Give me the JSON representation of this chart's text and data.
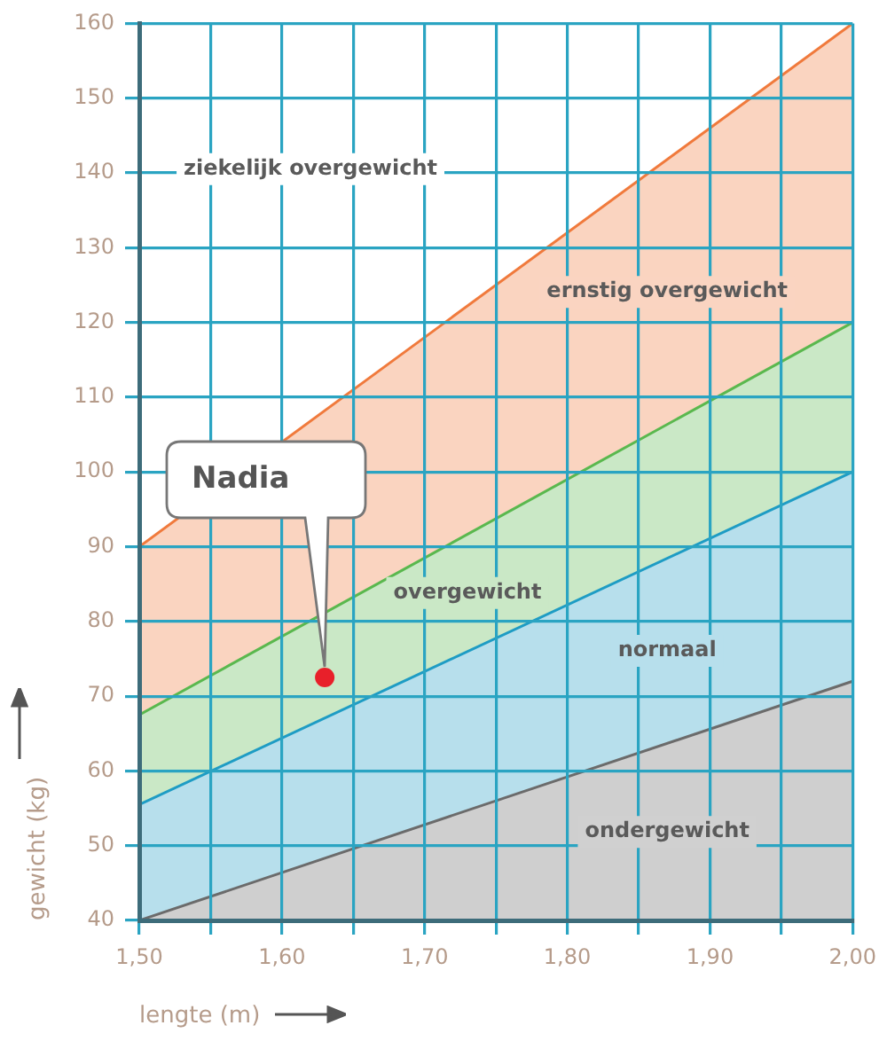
{
  "chart_data": {
    "type": "area",
    "xlabel": "lengte (m)",
    "ylabel": "gewicht (kg)",
    "x": [
      1.5,
      2.0
    ],
    "xlim": [
      1.5,
      2.0
    ],
    "xticks": [
      {
        "value": 1.5,
        "label": "1,50"
      },
      {
        "value": 1.55,
        "label": null
      },
      {
        "value": 1.6,
        "label": "1,60"
      },
      {
        "value": 1.65,
        "label": null
      },
      {
        "value": 1.7,
        "label": "1,70"
      },
      {
        "value": 1.75,
        "label": null
      },
      {
        "value": 1.8,
        "label": "1,80"
      },
      {
        "value": 1.85,
        "label": null
      },
      {
        "value": 1.9,
        "label": "1,90"
      },
      {
        "value": 1.95,
        "label": null
      },
      {
        "value": 2.0,
        "label": "2,00"
      }
    ],
    "ylim": [
      40,
      160
    ],
    "yticks": [
      40,
      50,
      60,
      70,
      80,
      90,
      100,
      110,
      120,
      130,
      140,
      150,
      160
    ],
    "grid": true,
    "legend": false,
    "series": [
      {
        "name": "ondergewicht",
        "color": "#6b6b6b",
        "values": [
          40,
          72
        ]
      },
      {
        "name": "normaal",
        "color": "#1e9cc4",
        "values": [
          55.5,
          100
        ]
      },
      {
        "name": "overgewicht",
        "color": "#5ab84e",
        "values": [
          67.5,
          120
        ]
      },
      {
        "name": "ernstig overgewicht",
        "color": "#f07a3c",
        "values": [
          90,
          160
        ]
      },
      {
        "type": "scatter",
        "color": "#e8202a",
        "x": [
          1.63
        ],
        "values": [
          72.5
        ],
        "marker": "circle"
      }
    ],
    "annotations": [
      "ziekelijk overgewicht",
      "Nadia"
    ]
  }
}
